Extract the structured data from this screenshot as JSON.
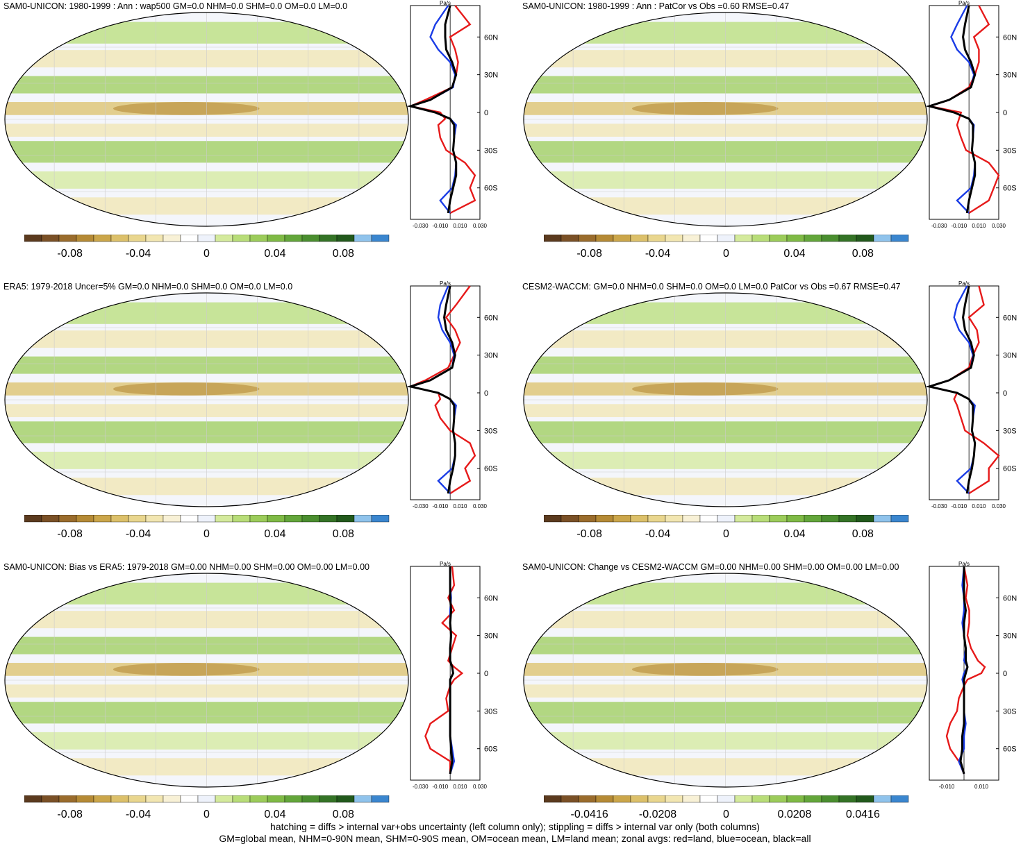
{
  "colors": {
    "palette": [
      "#5b3a1e",
      "#7a5026",
      "#9a6c2c",
      "#b58a35",
      "#cba64a",
      "#dcc06a",
      "#e9d68e",
      "#f2e6b1",
      "#f8f1d6",
      "#ffffff",
      "#eef2fb",
      "#d4ea9c",
      "#b8dd78",
      "#9ccc5a",
      "#7fba45",
      "#63a63a",
      "#4a8e2f",
      "#347326",
      "#22591c",
      "#8fc3ec",
      "#3a86cf"
    ],
    "land": "#e61a1a",
    "ocean": "#1a3ce6",
    "all": "#000000"
  },
  "panels": [
    {
      "title": "SAM0-UNICON: 1980-1999 : Ann : wap500 GM=0.0 NHM=0.0 SHM=0.0 OM=0.0 LM=0.0",
      "profile_unit": "Pa/s",
      "profile_xticks": [
        "-0.030",
        "-0.010",
        "0.010",
        "0.030"
      ],
      "colorbar_ticks": [
        "-0.08",
        "-0.04",
        "0",
        "0.04",
        "0.08"
      ]
    },
    {
      "title": "SAM0-UNICON: 1980-1999 : Ann : PatCor vs Obs =0.60 RMSE=0.47",
      "profile_unit": "Pa/s",
      "profile_xticks": [
        "-0.030",
        "-0.010",
        "0.010",
        "0.030"
      ],
      "colorbar_ticks": [
        "-0.08",
        "-0.04",
        "0",
        "0.04",
        "0.08"
      ]
    },
    {
      "title": "ERA5: 1979-2018 Uncer=5% GM=0.0 NHM=0.0 SHM=0.0 OM=0.0 LM=0.0",
      "profile_unit": "Pa/s",
      "profile_xticks": [
        "-0.030",
        "-0.010",
        "0.010",
        "0.030"
      ],
      "colorbar_ticks": [
        "-0.08",
        "-0.04",
        "0",
        "0.04",
        "0.08"
      ]
    },
    {
      "title": "CESM2-WACCM: GM=0.0 NHM=0.0 SHM=0.0 OM=0.0 LM=0.0 PatCor vs Obs =0.67 RMSE=0.47",
      "profile_unit": "Pa/s",
      "profile_xticks": [
        "-0.030",
        "-0.010",
        "0.010",
        "0.030"
      ],
      "colorbar_ticks": [
        "-0.08",
        "-0.04",
        "0",
        "0.04",
        "0.08"
      ]
    },
    {
      "title": "SAM0-UNICON: Bias vs ERA5: 1979-2018 GM=0.00 NHM=0.00 SHM=0.00 OM=0.00 LM=0.00",
      "profile_unit": "Pa/s",
      "profile_xticks": [
        "-0.030",
        "-0.010",
        "0.010",
        "0.030"
      ],
      "colorbar_ticks": [
        "-0.08",
        "-0.04",
        "0",
        "0.04",
        "0.08"
      ]
    },
    {
      "title": "SAM0-UNICON: Change vs CESM2-WACCM GM=0.00 NHM=0.00 SHM=0.00 OM=0.00 LM=0.00",
      "profile_unit": "Pa/s",
      "profile_xticks": [
        "-0.010",
        "0.010"
      ],
      "colorbar_ticks": [
        "-0.0416",
        "-0.0208",
        "0",
        "0.0208",
        "0.0416"
      ]
    }
  ],
  "chart_data": {
    "type": "heatmap",
    "profile_lat_ticks": [
      "60N",
      "30N",
      "0",
      "30S",
      "60S"
    ],
    "profiles": [
      {
        "xlim": [
          -0.04,
          0.03
        ],
        "lat": [
          85,
          70,
          60,
          50,
          40,
          30,
          20,
          10,
          5,
          0,
          -5,
          -10,
          -20,
          -30,
          -40,
          -50,
          -60,
          -70,
          -80
        ],
        "land": [
          0.005,
          0.02,
          0.0,
          0.005,
          0.008,
          0.006,
          0.002,
          -0.025,
          -0.04,
          -0.01,
          -0.005,
          -0.012,
          -0.01,
          -0.004,
          0.015,
          0.025,
          0.02,
          0.025,
          0.0
        ],
        "ocean": [
          -0.002,
          -0.015,
          -0.02,
          -0.012,
          0.0,
          0.005,
          0.003,
          -0.02,
          -0.04,
          -0.015,
          0.0,
          0.006,
          0.004,
          0.003,
          0.006,
          0.005,
          0.002,
          -0.01,
          0.0
        ],
        "all": [
          0.0,
          -0.005,
          -0.005,
          -0.004,
          0.002,
          0.006,
          0.002,
          -0.02,
          -0.04,
          -0.015,
          0.0,
          0.004,
          0.004,
          0.003,
          0.006,
          0.006,
          0.003,
          0.0,
          -0.002
        ]
      },
      {
        "xlim": [
          -0.04,
          0.03
        ],
        "lat": [
          85,
          70,
          60,
          50,
          40,
          30,
          20,
          10,
          5,
          0,
          -5,
          -10,
          -20,
          -30,
          -40,
          -50,
          -60,
          -70,
          -80
        ],
        "land": [
          0.01,
          0.02,
          0.005,
          0.01,
          0.01,
          0.006,
          0.0,
          -0.02,
          -0.04,
          -0.008,
          -0.01,
          -0.012,
          -0.008,
          -0.003,
          0.02,
          0.03,
          0.025,
          0.02,
          0.0
        ],
        "ocean": [
          -0.002,
          -0.012,
          -0.018,
          -0.012,
          0.0,
          0.005,
          0.002,
          -0.02,
          -0.04,
          -0.015,
          0.0,
          0.005,
          0.004,
          0.003,
          0.006,
          0.005,
          0.002,
          -0.012,
          0.0
        ],
        "all": [
          0.0,
          -0.004,
          -0.006,
          -0.004,
          0.002,
          0.006,
          0.002,
          -0.02,
          -0.04,
          -0.015,
          0.0,
          0.004,
          0.004,
          0.003,
          0.006,
          0.006,
          0.003,
          0.0,
          -0.002
        ]
      },
      {
        "xlim": [
          -0.04,
          0.03
        ],
        "lat": [
          85,
          70,
          60,
          50,
          40,
          30,
          20,
          10,
          5,
          0,
          -5,
          -10,
          -20,
          -30,
          -40,
          -50,
          -60,
          -70,
          -80
        ],
        "land": [
          0.02,
          0.006,
          -0.004,
          0.005,
          0.01,
          0.004,
          -0.002,
          -0.025,
          -0.04,
          -0.012,
          -0.01,
          -0.015,
          -0.01,
          0.0,
          0.02,
          0.025,
          0.015,
          0.02,
          0.0
        ],
        "ocean": [
          -0.002,
          -0.01,
          -0.012,
          -0.008,
          0.0,
          0.004,
          0.002,
          -0.02,
          -0.04,
          -0.012,
          0.0,
          0.006,
          0.004,
          0.003,
          0.005,
          0.005,
          0.002,
          -0.012,
          0.0
        ],
        "all": [
          0.0,
          -0.004,
          -0.006,
          -0.004,
          0.002,
          0.005,
          0.002,
          -0.02,
          -0.04,
          -0.012,
          0.0,
          0.004,
          0.004,
          0.003,
          0.005,
          0.005,
          0.003,
          0.0,
          -0.002
        ]
      },
      {
        "xlim": [
          -0.04,
          0.03
        ],
        "lat": [
          85,
          70,
          60,
          50,
          40,
          30,
          20,
          10,
          5,
          0,
          -5,
          -10,
          -20,
          -30,
          -40,
          -50,
          -60,
          -70,
          -80
        ],
        "land": [
          0.01,
          0.015,
          0.0,
          0.008,
          0.01,
          0.004,
          0.0,
          -0.02,
          -0.04,
          -0.012,
          -0.015,
          -0.012,
          -0.008,
          -0.004,
          0.015,
          0.03,
          0.02,
          0.02,
          0.0
        ],
        "ocean": [
          -0.002,
          -0.012,
          -0.015,
          -0.01,
          0.0,
          0.004,
          0.002,
          -0.02,
          -0.04,
          -0.012,
          0.0,
          0.006,
          0.004,
          0.003,
          0.006,
          0.005,
          0.002,
          -0.012,
          0.0
        ],
        "all": [
          0.0,
          -0.004,
          -0.006,
          -0.004,
          0.002,
          0.005,
          0.002,
          -0.02,
          -0.04,
          -0.012,
          0.0,
          0.004,
          0.004,
          0.003,
          0.006,
          0.005,
          0.003,
          0.0,
          -0.002
        ]
      },
      {
        "xlim": [
          -0.04,
          0.03
        ],
        "lat": [
          85,
          70,
          60,
          50,
          40,
          30,
          20,
          10,
          5,
          0,
          -5,
          -10,
          -20,
          -30,
          -40,
          -50,
          -60,
          -70,
          -80
        ],
        "land": [
          0.002,
          0.004,
          -0.002,
          0.004,
          -0.008,
          0.006,
          0.002,
          -0.002,
          0.004,
          0.012,
          0.004,
          0.0,
          -0.004,
          -0.002,
          -0.02,
          -0.025,
          -0.02,
          0.0,
          0.0
        ],
        "ocean": [
          0.0,
          0.0,
          0.001,
          0.0,
          0.0,
          0.001,
          0.0,
          0.0,
          0.002,
          0.003,
          0.0,
          0.0,
          0.0,
          0.0,
          0.0,
          0.0,
          0.002,
          0.004,
          0.0
        ],
        "all": [
          0.0,
          0.0,
          0.0,
          0.001,
          0.0,
          0.001,
          0.0,
          0.0,
          0.002,
          0.003,
          0.0,
          0.0,
          0.0,
          0.0,
          0.0,
          0.0,
          0.001,
          0.002,
          0.0
        ]
      },
      {
        "xlim": [
          -0.02,
          0.02
        ],
        "lat": [
          85,
          70,
          60,
          50,
          40,
          30,
          20,
          10,
          5,
          0,
          -5,
          -10,
          -20,
          -30,
          -40,
          -50,
          -60,
          -70,
          -80
        ],
        "land": [
          0.0,
          0.002,
          0.001,
          0.003,
          0.003,
          0.002,
          0.004,
          0.008,
          0.012,
          0.01,
          0.002,
          0.0,
          -0.003,
          -0.004,
          -0.008,
          -0.01,
          -0.008,
          -0.003,
          0.0
        ],
        "ocean": [
          0.0,
          -0.001,
          0.0,
          0.0,
          -0.001,
          0.0,
          0.001,
          0.0,
          0.002,
          0.0,
          -0.001,
          0.0,
          0.0,
          0.0,
          0.001,
          0.0,
          0.0,
          -0.003,
          0.0
        ],
        "all": [
          0.0,
          0.0,
          0.0,
          0.001,
          0.0,
          0.0,
          0.001,
          0.001,
          0.002,
          0.001,
          0.0,
          0.0,
          0.0,
          0.0,
          0.0,
          -0.001,
          -0.001,
          -0.002,
          0.0
        ]
      }
    ]
  },
  "footnote": {
    "line1": "hatching = diffs > internal var+obs uncertainty (left column only); stippling = diffs > internal var only (both columns)",
    "line2": "GM=global mean, NHM=0-90N mean, SHM=0-90S mean, OM=ocean mean, LM=land mean; zonal avgs: red=land, blue=ocean, black=all"
  }
}
